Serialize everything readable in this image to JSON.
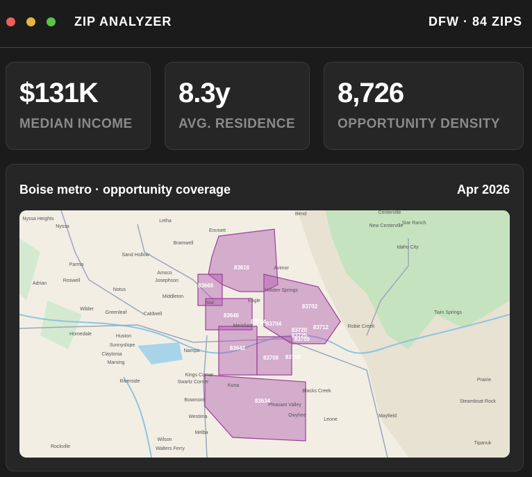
{
  "window": {
    "title": "ZIP ANALYZER",
    "badge": "DFW · 84 ZIPS"
  },
  "stats": [
    {
      "value": "$131K",
      "label": "MEDIAN INCOME"
    },
    {
      "value": "8.3y",
      "label": "AVG. RESIDENCE"
    },
    {
      "value": "8,726",
      "label": "OPPORTUNITY DENSITY"
    }
  ],
  "map_card": {
    "title": "Boise metro · opportunity coverage",
    "date": "Apr 2026",
    "zip_labels": [
      "83616",
      "83669",
      "83646",
      "83642",
      "83709",
      "83634",
      "83702",
      "83712",
      "83714",
      "83704",
      "83706",
      "83720",
      "83725",
      "83705"
    ],
    "place_labels": [
      "Nyssa Heights",
      "Nyssa",
      "Letha",
      "Emmett",
      "Bramwell",
      "Parma",
      "Sand Hollow",
      "Roswell",
      "Adrian",
      "Notus",
      "Amsco",
      "Josephson",
      "Middleton",
      "Star",
      "Eagle",
      "Wilder",
      "Greenleaf",
      "Caldwell",
      "Homedale",
      "Huston",
      "Sunnyslope",
      "Claytonia",
      "Marsing",
      "Nampa",
      "Kuna",
      "Meridian",
      "Riverside",
      "Kings Corner",
      "Swartz Corner",
      "Melba",
      "Wilson",
      "Walters Ferry",
      "Rockville",
      "Hidden Springs",
      "Avimor",
      "Pleasant Valley",
      "Blacks Creek",
      "Owyhee",
      "Leone",
      "Mayfield",
      "Robie Creek",
      "Twin Springs",
      "Prairie",
      "Steamboat Rock",
      "Tipanuk",
      "Centerville",
      "New Centerville",
      "Star Ranch",
      "Idaho City",
      "Bend",
      "Westima",
      "Bowmont"
    ]
  }
}
